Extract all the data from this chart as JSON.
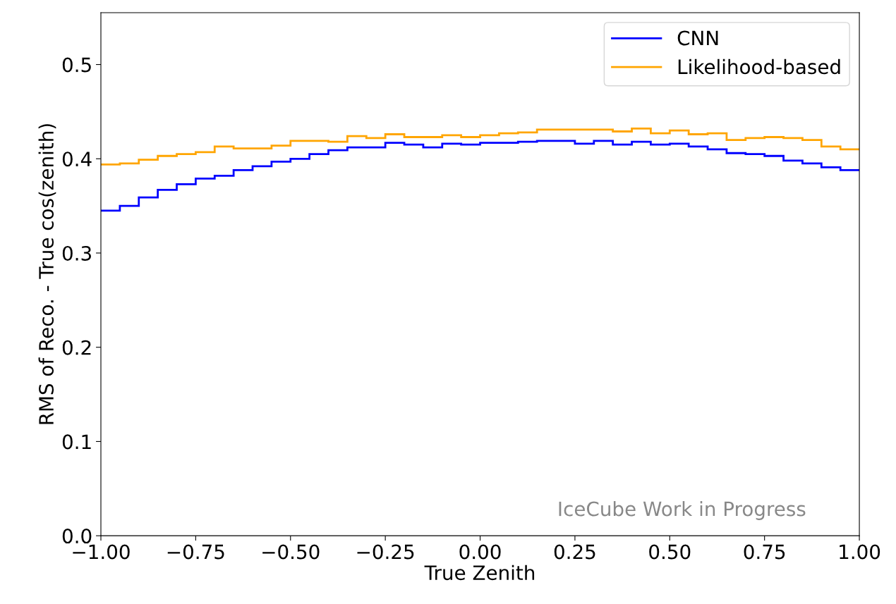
{
  "chart_data": {
    "type": "histogram",
    "xlabel": "True Zenith",
    "ylabel": "RMS of Reco. - True cos(zenith)",
    "bins": [
      -1.0,
      -0.95,
      -0.9,
      -0.85,
      -0.8,
      -0.75,
      -0.7,
      -0.65,
      -0.6,
      -0.55,
      -0.5,
      -0.45,
      -0.4,
      -0.35,
      -0.3,
      -0.25,
      -0.2,
      -0.15,
      -0.1,
      -0.05,
      0.0,
      0.05,
      0.1,
      0.15,
      0.2,
      0.25,
      0.3,
      0.35,
      0.4,
      0.45,
      0.5,
      0.55,
      0.6,
      0.65,
      0.7,
      0.75,
      0.8,
      0.85,
      0.9,
      0.95,
      1.0
    ],
    "series": [
      {
        "name": "CNN",
        "color": "#0000ff",
        "values": [
          0.345,
          0.35,
          0.359,
          0.367,
          0.373,
          0.379,
          0.382,
          0.388,
          0.392,
          0.397,
          0.4,
          0.405,
          0.409,
          0.412,
          0.412,
          0.417,
          0.415,
          0.412,
          0.416,
          0.415,
          0.417,
          0.417,
          0.418,
          0.419,
          0.419,
          0.416,
          0.419,
          0.415,
          0.418,
          0.415,
          0.416,
          0.413,
          0.41,
          0.406,
          0.405,
          0.403,
          0.398,
          0.395,
          0.391,
          0.388
        ]
      },
      {
        "name": "Likelihood-based",
        "color": "#ffa500",
        "values": [
          0.394,
          0.395,
          0.399,
          0.403,
          0.405,
          0.407,
          0.413,
          0.411,
          0.411,
          0.414,
          0.419,
          0.419,
          0.418,
          0.424,
          0.422,
          0.426,
          0.423,
          0.423,
          0.425,
          0.423,
          0.425,
          0.427,
          0.428,
          0.431,
          0.431,
          0.431,
          0.431,
          0.429,
          0.432,
          0.427,
          0.43,
          0.426,
          0.427,
          0.42,
          0.422,
          0.423,
          0.422,
          0.42,
          0.413,
          0.41
        ]
      }
    ],
    "xlim": [
      -1.0,
      1.0
    ],
    "xticks": [
      {
        "value": -1.0,
        "label": "−1.00"
      },
      {
        "value": -0.75,
        "label": "−0.75"
      },
      {
        "value": -0.5,
        "label": "−0.50"
      },
      {
        "value": -0.25,
        "label": "−0.25"
      },
      {
        "value": 0.0,
        "label": "0.00"
      },
      {
        "value": 0.25,
        "label": "0.25"
      },
      {
        "value": 0.5,
        "label": "0.50"
      },
      {
        "value": 0.75,
        "label": "0.75"
      },
      {
        "value": 1.0,
        "label": "1.00"
      }
    ],
    "ylim": [
      0.0,
      0.555
    ],
    "yticks": [
      {
        "value": 0.0,
        "label": "0.0"
      },
      {
        "value": 0.1,
        "label": "0.1"
      },
      {
        "value": 0.2,
        "label": "0.2"
      },
      {
        "value": 0.3,
        "label": "0.3"
      },
      {
        "value": 0.4,
        "label": "0.4"
      },
      {
        "value": 0.5,
        "label": "0.5"
      }
    ],
    "annotations": [
      "IceCube Work in Progress"
    ],
    "legend": "top right",
    "grid": false
  }
}
